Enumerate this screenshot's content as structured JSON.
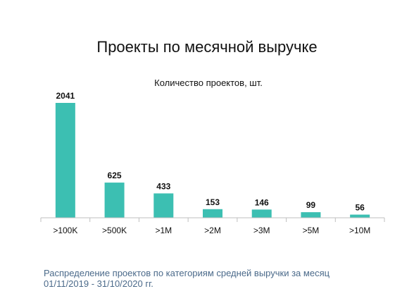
{
  "title": "Проекты по месячной выручке",
  "footer": {
    "line1": "Распределение проектов по категориям средней выручки за месяц",
    "line2": "01/11/2019 - 31/10/2020 гг."
  },
  "chart_data": {
    "type": "bar",
    "subtitle": "Количество проектов, шт.",
    "categories": [
      ">100K",
      ">500K",
      ">1M",
      ">2M",
      ">3M",
      ">5M",
      ">10M"
    ],
    "values": [
      2041,
      625,
      433,
      153,
      146,
      99,
      56
    ],
    "ylim": [
      0,
      2041
    ],
    "bar_color": "#3cbfb2",
    "axis_color": "#bfbfbf",
    "data_labels": true,
    "grid": false,
    "legend": "none"
  }
}
